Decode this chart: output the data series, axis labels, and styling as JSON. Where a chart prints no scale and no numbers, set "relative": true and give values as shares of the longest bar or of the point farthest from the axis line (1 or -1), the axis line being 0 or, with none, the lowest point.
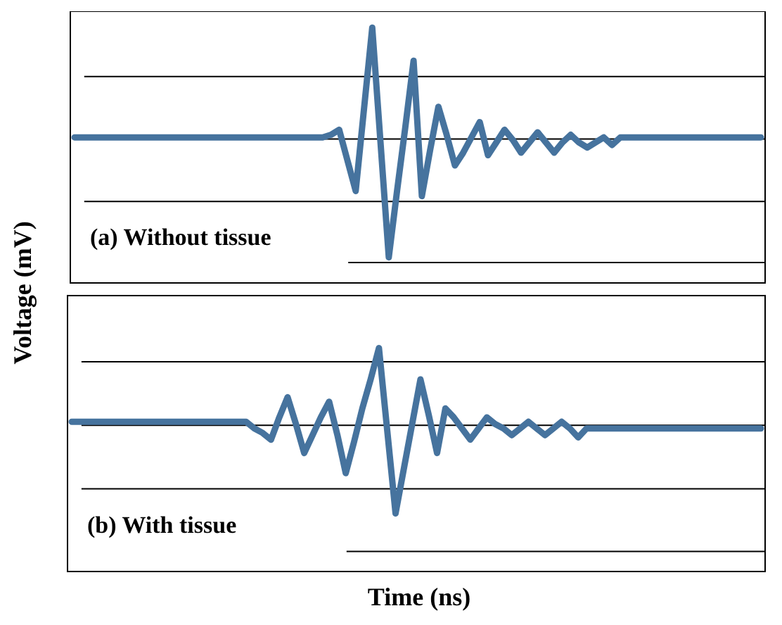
{
  "chart_data": [
    {
      "type": "line",
      "relative": true,
      "grid": true,
      "ylabel": "Voltage (mV)",
      "annotations": [
        "(a) Without tissue"
      ],
      "ref_lines": [
        {
          "axis": "y",
          "value": 0.08,
          "color": "#000000"
        }
      ],
      "categories": [
        null,
        null,
        null,
        null,
        null,
        null,
        null,
        null,
        null,
        null,
        null,
        null,
        null,
        null,
        null,
        null,
        null,
        null,
        null,
        null,
        null,
        null,
        null,
        null,
        null,
        null,
        null,
        null,
        null,
        null,
        null,
        null,
        null,
        null,
        null,
        null,
        null,
        null,
        null,
        null,
        null,
        null,
        null,
        null,
        null,
        null,
        null,
        null,
        null,
        null,
        null,
        null,
        null,
        null,
        null,
        null,
        null,
        null,
        null,
        null,
        null,
        null,
        null,
        null,
        null,
        null,
        null,
        null,
        null,
        null,
        null,
        null,
        null,
        null,
        null,
        null,
        null,
        null,
        null,
        null,
        null,
        null,
        null,
        null
      ],
      "series": [
        {
          "color": "#46739e",
          "values": [
            0.57,
            0.57,
            0.57,
            0.57,
            0.57,
            0.57,
            0.57,
            0.57,
            0.57,
            0.57,
            0.57,
            0.57,
            0.57,
            0.57,
            0.57,
            0.57,
            0.57,
            0.57,
            0.57,
            0.57,
            0.57,
            0.57,
            0.57,
            0.57,
            0.57,
            0.57,
            0.57,
            0.57,
            0.57,
            0.57,
            0.57,
            0.58,
            0.6,
            0.48,
            0.36,
            0.68,
            1,
            0.55,
            0.1,
            0.36,
            0.61,
            0.87,
            0.34,
            0.52,
            0.69,
            0.58,
            0.46,
            0.51,
            0.57,
            0.63,
            0.5,
            0.55,
            0.6,
            0.56,
            0.51,
            0.55,
            0.59,
            0.55,
            0.51,
            0.55,
            0.58,
            0.55,
            0.53,
            0.55,
            0.57,
            0.54,
            0.57,
            0.57,
            0.57,
            0.57,
            0.57,
            0.57,
            0.57,
            0.57,
            0.57,
            0.57,
            0.57,
            0.57,
            0.57,
            0.57,
            0.57,
            0.57,
            0.57,
            0.57
          ]
        }
      ]
    },
    {
      "type": "line",
      "relative": true,
      "grid": true,
      "xlabel": "Time (ns)",
      "annotations": [
        "(b) With tissue"
      ],
      "ref_lines": [
        {
          "axis": "y",
          "value": 0.09,
          "color": "#000000"
        }
      ],
      "categories": [
        null,
        null,
        null,
        null,
        null,
        null,
        null,
        null,
        null,
        null,
        null,
        null,
        null,
        null,
        null,
        null,
        null,
        null,
        null,
        null,
        null,
        null,
        null,
        null,
        null,
        null,
        null,
        null,
        null,
        null,
        null,
        null,
        null,
        null,
        null,
        null,
        null,
        null,
        null,
        null,
        null,
        null,
        null,
        null,
        null,
        null,
        null,
        null,
        null,
        null,
        null,
        null,
        null,
        null,
        null,
        null,
        null,
        null,
        null,
        null,
        null,
        null,
        null,
        null,
        null,
        null,
        null,
        null,
        null,
        null,
        null,
        null,
        null,
        null,
        null,
        null,
        null,
        null,
        null,
        null,
        null,
        null,
        null,
        null
      ],
      "series": [
        {
          "color": "#46739e",
          "values": [
            0.67,
            0.67,
            0.67,
            0.67,
            0.67,
            0.67,
            0.67,
            0.67,
            0.67,
            0.67,
            0.67,
            0.67,
            0.67,
            0.67,
            0.67,
            0.67,
            0.67,
            0.67,
            0.67,
            0.67,
            0.67,
            0.67,
            0.64,
            0.62,
            0.59,
            0.69,
            0.78,
            0.66,
            0.53,
            0.61,
            0.69,
            0.76,
            0.61,
            0.44,
            0.58,
            0.73,
            0.86,
            1,
            0.63,
            0.26,
            0.46,
            0.66,
            0.86,
            0.7,
            0.53,
            0.73,
            0.69,
            0.64,
            0.59,
            0.64,
            0.69,
            0.66,
            0.64,
            0.61,
            0.64,
            0.67,
            0.64,
            0.61,
            0.64,
            0.67,
            0.64,
            0.6,
            0.64,
            0.64,
            0.64,
            0.64,
            0.64,
            0.64,
            0.64,
            0.64,
            0.64,
            0.64,
            0.64,
            0.64,
            0.64,
            0.64,
            0.64,
            0.64,
            0.64,
            0.64,
            0.64,
            0.64,
            0.64,
            0.64
          ]
        }
      ]
    }
  ]
}
